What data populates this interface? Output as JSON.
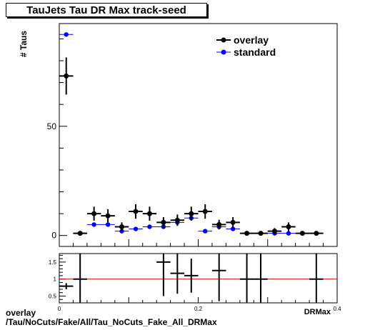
{
  "header": {
    "title": "TauJets Tau DR Max track-seed"
  },
  "footer": {
    "line1": "overlay",
    "line2": "/Tau/NoCuts/Fake/All/Tau_NoCuts_Fake_All_DRMax"
  },
  "colors": {
    "overlay": "#000000",
    "standard": "#0000ff",
    "ratio_line": "#cc0000"
  },
  "chart_data": [
    {
      "type": "scatter",
      "title": "TauJets Tau DR Max track-seed",
      "xlabel": "DRMax",
      "ylabel": "# Taus",
      "xlim": [
        0,
        0.4
      ],
      "ylim": [
        -5,
        97
      ],
      "x_tick_labels": [],
      "y_ticks": [
        0,
        50
      ],
      "y_tick_labels": [
        "0",
        "50"
      ],
      "legend_position": "top-right",
      "x": [
        0.01,
        0.03,
        0.05,
        0.07,
        0.09,
        0.11,
        0.13,
        0.15,
        0.17,
        0.19,
        0.21,
        0.23,
        0.25,
        0.27,
        0.29,
        0.31,
        0.33,
        0.35,
        0.37
      ],
      "bin_half_width": 0.01,
      "series": [
        {
          "name": "overlay",
          "color": "#000000",
          "values": [
            73,
            1,
            10,
            9,
            4,
            11,
            10,
            6,
            7,
            10,
            11,
            5,
            6,
            1,
            1,
            2,
            4,
            1,
            1
          ],
          "errors": [
            8.5,
            1,
            3.2,
            3,
            2,
            3.3,
            3.2,
            2.4,
            2.6,
            3.2,
            3.3,
            2.2,
            2.4,
            1,
            1,
            1.4,
            2,
            1,
            1
          ]
        },
        {
          "name": "standard",
          "color": "#0000ff",
          "values": [
            92,
            0,
            5,
            5,
            2,
            3,
            4,
            4,
            6,
            8,
            2,
            4,
            3,
            0,
            0,
            1,
            1,
            0,
            0
          ],
          "errors": [
            0,
            0,
            0,
            0,
            0,
            0,
            0,
            0,
            0,
            0,
            0,
            0,
            0,
            0,
            0,
            0,
            0,
            0,
            0
          ]
        }
      ]
    },
    {
      "type": "scatter",
      "title": "",
      "xlabel": "DRMax",
      "ylabel": "",
      "xlim": [
        0,
        0.4
      ],
      "ylim": [
        0.3,
        1.75
      ],
      "x_ticks": [
        0,
        0.2,
        0.4
      ],
      "x_tick_labels": [
        "0",
        "0.2",
        "0.4"
      ],
      "y_ticks": [
        0.5,
        1,
        1.5
      ],
      "y_tick_labels": [
        "0.5",
        "1",
        "1.5"
      ],
      "reference_line": 1,
      "points": [
        {
          "x": 0.01,
          "y": 0.79,
          "xerr": 0.01,
          "yerr": 0.09
        },
        {
          "x": 0.03,
          "y": 1.0,
          "xerr": 0.01,
          "yerr": 1.0
        },
        {
          "x": 0.15,
          "y": 1.5,
          "xerr": 0.01,
          "yerr": 1.0
        },
        {
          "x": 0.17,
          "y": 1.17,
          "xerr": 0.01,
          "yerr": 0.6
        },
        {
          "x": 0.19,
          "y": 1.1,
          "xerr": 0.01,
          "yerr": 0.5
        },
        {
          "x": 0.23,
          "y": 1.25,
          "xerr": 0.01,
          "yerr": 0.9
        },
        {
          "x": 0.27,
          "y": 1.0,
          "xerr": 0.01,
          "yerr": 1.0
        },
        {
          "x": 0.29,
          "y": 1.0,
          "xerr": 0.01,
          "yerr": 1.0
        },
        {
          "x": 0.37,
          "y": 1.0,
          "xerr": 0.01,
          "yerr": 1.0
        }
      ]
    }
  ]
}
